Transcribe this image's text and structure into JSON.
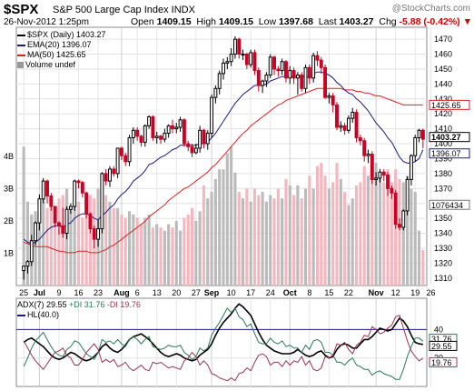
{
  "header": {
    "symbol": "$SPX",
    "name": "S&P 500 Large Cap Index INDX",
    "watermark": "@StockCharts.com",
    "date": "26-Nov-2012 1:25pm",
    "open_label": "Open",
    "open": "1409.15",
    "high_label": "High",
    "high": "1409.15",
    "low_label": "Low",
    "low": "1397.68",
    "last_label": "Last",
    "last": "1403.27",
    "chg_label": "Chg",
    "chg": "-5.88 (-0.42%)",
    "chg_marker": "▼"
  },
  "legend": {
    "price": "$SPX (Daily) 1403.27",
    "ema": "EMA(20) 1396.07",
    "ma": "MA(50) 1425.65",
    "volume": "Volume undef"
  },
  "indicator_legend": {
    "adx": "ADX(7) 29.55",
    "pdi": "+DI 31.76",
    "mdi": "-DI 19.76",
    "hl": "HL(40.0)"
  },
  "colors": {
    "up": "#000000",
    "down": "#cc0022",
    "ema": "#1a1a88",
    "ma": "#dd2222",
    "volume_up": "#bbbbbb",
    "volume_down": "#f2b7bf",
    "adx": "#000000",
    "pdi": "#2a7a55",
    "mdi": "#993355"
  },
  "chart_data": [
    {
      "type": "candlestick",
      "ylim": [
        1305,
        1478
      ],
      "yticks": [
        1310,
        1320,
        1330,
        1340,
        1350,
        1360,
        1370,
        1380,
        1390,
        1400,
        1410,
        1420,
        1430,
        1440,
        1450,
        1460,
        1470
      ],
      "vol_ticks": [
        "1B",
        "2B",
        "3B",
        "4B"
      ],
      "vol_tick_values": [
        1,
        2,
        3,
        4
      ],
      "vol_ylim": [
        0,
        8
      ],
      "x_labels": [
        "25",
        "Jul",
        "9",
        "16",
        "23",
        "Aug",
        "6",
        "13",
        "20",
        "27",
        "Sep",
        "10",
        "17",
        "24",
        "Oct",
        "8",
        "15",
        "22",
        "Nov",
        "12",
        "19",
        "26"
      ],
      "x_label_index": [
        0,
        4,
        9,
        14,
        19,
        25,
        29,
        34,
        39,
        44,
        48,
        53,
        58,
        63,
        68,
        73,
        78,
        83,
        90,
        95,
        100,
        104
      ],
      "bold_labels": [
        "Jul",
        "Aug",
        "Sep",
        "Oct",
        "Nov"
      ],
      "value_tags": {
        "last": "1403.27",
        "ma": "1425.65",
        "ema": "1396.07",
        "volume": "1076434"
      },
      "open": [
        1315,
        1318,
        1321,
        1335,
        1347,
        1363,
        1375,
        1365,
        1358,
        1347,
        1345,
        1340,
        1356,
        1358,
        1375,
        1374,
        1367,
        1353,
        1343,
        1336,
        1343,
        1380,
        1375,
        1383,
        1380,
        1397,
        1392,
        1388,
        1404,
        1409,
        1405,
        1401,
        1412,
        1418,
        1404,
        1405,
        1403,
        1407,
        1412,
        1410,
        1411,
        1416,
        1400,
        1398,
        1394,
        1397,
        1409,
        1400,
        1407,
        1431,
        1437,
        1447,
        1454,
        1455,
        1460,
        1470,
        1460,
        1460,
        1453,
        1461,
        1449,
        1439,
        1442,
        1446,
        1458,
        1450,
        1449,
        1455,
        1444,
        1449,
        1444,
        1446,
        1437,
        1451,
        1444,
        1459,
        1456,
        1451,
        1431,
        1432,
        1426,
        1411,
        1412,
        1409,
        1417,
        1421,
        1404,
        1402,
        1392,
        1393,
        1376,
        1377,
        1381,
        1379,
        1370,
        1367,
        1346,
        1344,
        1355,
        1376,
        1392,
        1404,
        1409
      ],
      "high": [
        1318,
        1322,
        1339,
        1348,
        1366,
        1377,
        1376,
        1367,
        1358,
        1348,
        1357,
        1358,
        1360,
        1376,
        1376,
        1375,
        1368,
        1354,
        1345,
        1349,
        1381,
        1383,
        1385,
        1385,
        1397,
        1398,
        1394,
        1406,
        1411,
        1411,
        1406,
        1413,
        1419,
        1419,
        1408,
        1406,
        1410,
        1413,
        1416,
        1414,
        1418,
        1417,
        1402,
        1400,
        1400,
        1412,
        1410,
        1409,
        1433,
        1439,
        1449,
        1457,
        1458,
        1464,
        1472,
        1471,
        1463,
        1461,
        1463,
        1463,
        1451,
        1443,
        1448,
        1460,
        1459,
        1452,
        1457,
        1456,
        1452,
        1451,
        1448,
        1448,
        1453,
        1453,
        1461,
        1462,
        1458,
        1453,
        1434,
        1434,
        1428,
        1415,
        1414,
        1419,
        1424,
        1423,
        1406,
        1404,
        1396,
        1395,
        1381,
        1383,
        1383,
        1381,
        1372,
        1369,
        1350,
        1356,
        1378,
        1393,
        1406,
        1410,
        1410
      ],
      "low": [
        1309,
        1313,
        1318,
        1332,
        1342,
        1360,
        1360,
        1355,
        1344,
        1339,
        1337,
        1336,
        1353,
        1355,
        1370,
        1364,
        1350,
        1340,
        1330,
        1331,
        1340,
        1372,
        1371,
        1378,
        1377,
        1389,
        1385,
        1385,
        1400,
        1402,
        1398,
        1398,
        1410,
        1402,
        1400,
        1400,
        1401,
        1404,
        1407,
        1407,
        1408,
        1398,
        1395,
        1391,
        1393,
        1394,
        1397,
        1396,
        1404,
        1427,
        1433,
        1443,
        1450,
        1452,
        1457,
        1457,
        1456,
        1450,
        1451,
        1446,
        1435,
        1434,
        1438,
        1444,
        1446,
        1445,
        1446,
        1441,
        1440,
        1440,
        1433,
        1435,
        1434,
        1440,
        1441,
        1452,
        1447,
        1430,
        1427,
        1421,
        1409,
        1408,
        1406,
        1407,
        1414,
        1401,
        1399,
        1388,
        1387,
        1373,
        1372,
        1374,
        1375,
        1365,
        1363,
        1343,
        1342,
        1342,
        1352,
        1372,
        1388,
        1401,
        1397
      ],
      "close": [
        1318,
        1321,
        1335,
        1347,
        1363,
        1375,
        1365,
        1358,
        1347,
        1345,
        1340,
        1356,
        1358,
        1375,
        1374,
        1367,
        1353,
        1343,
        1336,
        1343,
        1380,
        1375,
        1383,
        1380,
        1397,
        1392,
        1388,
        1404,
        1409,
        1405,
        1401,
        1412,
        1418,
        1404,
        1405,
        1403,
        1407,
        1412,
        1410,
        1411,
        1416,
        1400,
        1398,
        1394,
        1397,
        1409,
        1400,
        1407,
        1431,
        1437,
        1447,
        1454,
        1455,
        1460,
        1470,
        1460,
        1460,
        1453,
        1461,
        1449,
        1439,
        1442,
        1446,
        1458,
        1450,
        1449,
        1455,
        1444,
        1449,
        1444,
        1446,
        1437,
        1451,
        1444,
        1459,
        1456,
        1451,
        1431,
        1432,
        1426,
        1411,
        1412,
        1409,
        1417,
        1421,
        1404,
        1402,
        1392,
        1393,
        1376,
        1377,
        1381,
        1379,
        1370,
        1367,
        1346,
        1344,
        1355,
        1376,
        1392,
        1404,
        1409,
        1403
      ],
      "ema": [
        1336,
        1334,
        1333,
        1334,
        1336,
        1339,
        1342,
        1344,
        1345,
        1345,
        1344,
        1346,
        1347,
        1350,
        1352,
        1353,
        1353,
        1352,
        1350,
        1349,
        1352,
        1354,
        1357,
        1359,
        1363,
        1366,
        1368,
        1371,
        1375,
        1377,
        1379,
        1382,
        1386,
        1387,
        1389,
        1391,
        1392,
        1394,
        1396,
        1397,
        1399,
        1399,
        1399,
        1399,
        1399,
        1400,
        1400,
        1401,
        1404,
        1407,
        1411,
        1415,
        1419,
        1423,
        1427,
        1430,
        1433,
        1435,
        1437,
        1439,
        1439,
        1439,
        1440,
        1442,
        1443,
        1444,
        1445,
        1445,
        1445,
        1445,
        1445,
        1445,
        1445,
        1445,
        1447,
        1448,
        1448,
        1447,
        1446,
        1444,
        1441,
        1439,
        1436,
        1434,
        1433,
        1430,
        1428,
        1425,
        1422,
        1418,
        1414,
        1411,
        1408,
        1404,
        1401,
        1396,
        1391,
        1388,
        1387,
        1387,
        1388,
        1390,
        1396
      ],
      "ma50": [
        1334,
        1333,
        1332,
        1331,
        1331,
        1331,
        1331,
        1330,
        1329,
        1328,
        1328,
        1327,
        1327,
        1327,
        1328,
        1328,
        1328,
        1327,
        1327,
        1327,
        1328,
        1329,
        1331,
        1332,
        1334,
        1336,
        1338,
        1340,
        1342,
        1344,
        1346,
        1348,
        1351,
        1353,
        1355,
        1357,
        1359,
        1362,
        1364,
        1366,
        1368,
        1370,
        1371,
        1373,
        1375,
        1377,
        1379,
        1381,
        1384,
        1386,
        1389,
        1392,
        1395,
        1398,
        1401,
        1404,
        1407,
        1409,
        1412,
        1414,
        1416,
        1418,
        1420,
        1422,
        1424,
        1426,
        1427,
        1429,
        1430,
        1431,
        1432,
        1433,
        1434,
        1435,
        1436,
        1437,
        1437,
        1437,
        1437,
        1437,
        1437,
        1437,
        1436,
        1436,
        1436,
        1435,
        1435,
        1434,
        1434,
        1433,
        1432,
        1432,
        1431,
        1430,
        1429,
        1428,
        1427,
        1426,
        1426,
        1426,
        1426,
        1426,
        1426
      ],
      "volume": [
        4.3,
        2.6,
        2.2,
        2.3,
        2.2,
        2.7,
        2.4,
        2.6,
        2.4,
        2.7,
        2.8,
        3.0,
        2.4,
        2.5,
        2.6,
        2.1,
        2.6,
        2.8,
        2.7,
        3.0,
        2.9,
        2.8,
        2.6,
        2.4,
        2.4,
        2.2,
        2.1,
        2.3,
        2.2,
        2.1,
        1.9,
        2.1,
        2.2,
        1.8,
        1.9,
        1.8,
        1.7,
        1.9,
        1.8,
        2.0,
        1.7,
        2.1,
        2.2,
        2.4,
        2.0,
        2.3,
        3.1,
        2.7,
        2.9,
        3.3,
        3.6,
        3.6,
        4.1,
        4.3,
        3.5,
        2.9,
        2.7,
        3.0,
        2.6,
        3.0,
        2.8,
        2.9,
        2.6,
        2.8,
        2.7,
        3.0,
        2.7,
        3.3,
        3.1,
        2.8,
        3.1,
        2.7,
        3.0,
        3.4,
        3.0,
        3.7,
        3.8,
        3.4,
        3.0,
        3.2,
        3.8,
        3.3,
        2.9,
        2.5,
        2.7,
        3.1,
        3.2,
        3.7,
        3.4,
        3.3,
        3.8,
        3.5,
        3.2,
        3.6,
        3.2,
        3.6,
        3.3,
        3.2,
        3.4,
        3.0,
        2.9,
        1.7,
        1.1
      ]
    },
    {
      "type": "line",
      "title": "ADX(7) 29.55 +DI 31.76 -DI 19.76",
      "ylim": [
        0,
        62
      ],
      "hline": 40,
      "ytick_labels": [
        "40",
        "20"
      ],
      "ytick_values": [
        40,
        20
      ],
      "value_tags": {
        "pdi": "31.76",
        "adx": "29.55",
        "mdi": "19.76"
      },
      "series": [
        {
          "name": "ADX(7)",
          "values": [
            31,
            33,
            34,
            32,
            30,
            28,
            25,
            22,
            20,
            19,
            20,
            22,
            24,
            23,
            21,
            19,
            18,
            19,
            21,
            24,
            28,
            30,
            27,
            25,
            24,
            26,
            29,
            33,
            35,
            36,
            37,
            35,
            33,
            30,
            27,
            24,
            22,
            21,
            22,
            23,
            22,
            20,
            19,
            18,
            19,
            22,
            24,
            26,
            30,
            36,
            41,
            45,
            48,
            51,
            55,
            58,
            56,
            53,
            50,
            44,
            38,
            33,
            29,
            27,
            25,
            24,
            23,
            23,
            23,
            24,
            26,
            24,
            22,
            21,
            22,
            24,
            25,
            22,
            20,
            21,
            26,
            29,
            30,
            29,
            27,
            27,
            30,
            33,
            33,
            35,
            38,
            41,
            40,
            39,
            40,
            44,
            48,
            46,
            42,
            36,
            31,
            30,
            29.55
          ]
        },
        {
          "name": "+DI",
          "values": [
            14,
            20,
            27,
            32,
            35,
            38,
            33,
            28,
            24,
            22,
            21,
            26,
            28,
            32,
            31,
            27,
            23,
            21,
            19,
            24,
            33,
            31,
            32,
            30,
            33,
            30,
            28,
            33,
            35,
            33,
            30,
            33,
            35,
            28,
            27,
            26,
            27,
            29,
            28,
            28,
            29,
            24,
            22,
            19,
            21,
            27,
            25,
            27,
            36,
            41,
            45,
            50,
            55,
            52,
            55,
            49,
            47,
            42,
            44,
            37,
            31,
            30,
            30,
            34,
            31,
            30,
            32,
            28,
            29,
            27,
            27,
            24,
            29,
            26,
            32,
            33,
            31,
            24,
            24,
            22,
            17,
            17,
            15,
            18,
            20,
            15,
            14,
            12,
            12,
            8,
            10,
            11,
            9,
            8,
            7,
            5,
            5,
            12,
            21,
            28,
            34,
            34,
            31.76
          ]
        },
        {
          "name": "-DI",
          "values": [
            32,
            27,
            22,
            18,
            15,
            12,
            16,
            20,
            24,
            25,
            27,
            22,
            20,
            15,
            15,
            19,
            24,
            27,
            30,
            26,
            17,
            19,
            17,
            19,
            14,
            15,
            17,
            13,
            11,
            13,
            15,
            12,
            11,
            17,
            16,
            17,
            15,
            13,
            14,
            13,
            12,
            18,
            20,
            24,
            21,
            15,
            18,
            15,
            9,
            8,
            6,
            5,
            4,
            6,
            4,
            9,
            10,
            13,
            11,
            17,
            22,
            23,
            21,
            15,
            17,
            17,
            14,
            18,
            15,
            18,
            17,
            21,
            15,
            18,
            12,
            11,
            13,
            21,
            20,
            22,
            30,
            29,
            31,
            26,
            23,
            29,
            31,
            36,
            35,
            42,
            40,
            37,
            38,
            41,
            43,
            49,
            50,
            41,
            32,
            25,
            21,
            18,
            19.76
          ]
        }
      ]
    }
  ]
}
